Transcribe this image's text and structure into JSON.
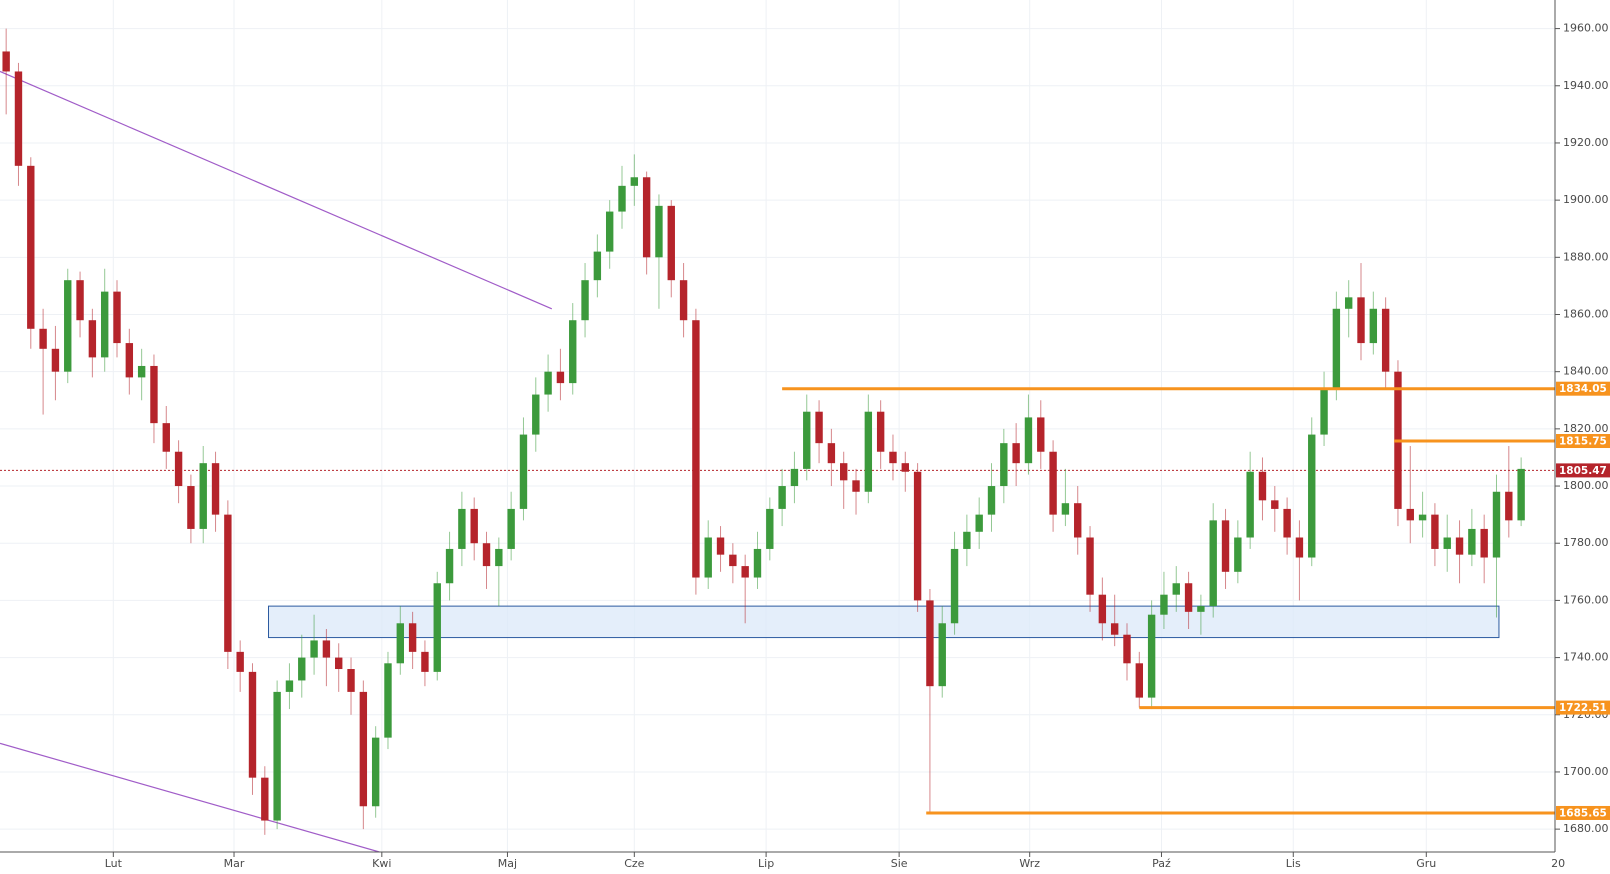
{
  "chart_data": {
    "type": "candlestick",
    "up_color": "#3c9a3c",
    "down_color": "#b5242b",
    "grid": true,
    "xlim": [
      -0.5,
      125.75
    ],
    "ylim": [
      1672,
      1970
    ],
    "xticks": [
      {
        "value": 8.7,
        "label": "Lut"
      },
      {
        "value": 18.5,
        "label": "Mar"
      },
      {
        "value": 30.5,
        "label": "Kwi"
      },
      {
        "value": 40.7,
        "label": "Maj"
      },
      {
        "value": 51,
        "label": "Cze"
      },
      {
        "value": 61.7,
        "label": "Lip"
      },
      {
        "value": 72.5,
        "label": "Sie"
      },
      {
        "value": 83.1,
        "label": "Wrz"
      },
      {
        "value": 93.8,
        "label": "Paź"
      },
      {
        "value": 104.5,
        "label": "Lis"
      },
      {
        "value": 115.3,
        "label": "Gru"
      },
      {
        "value": 126,
        "label": "20"
      }
    ],
    "yticks": [
      {
        "value": 1680,
        "label": "1680.00"
      },
      {
        "value": 1700,
        "label": "1700.00"
      },
      {
        "value": 1720,
        "label": "1720.00"
      },
      {
        "value": 1740,
        "label": "1740.00"
      },
      {
        "value": 1760,
        "label": "1760.00"
      },
      {
        "value": 1780,
        "label": "1780.00"
      },
      {
        "value": 1800,
        "label": "1800.00"
      },
      {
        "value": 1820,
        "label": "1820.00"
      },
      {
        "value": 1840,
        "label": "1840.00"
      },
      {
        "value": 1860,
        "label": "1860.00"
      },
      {
        "value": 1880,
        "label": "1880.00"
      },
      {
        "value": 1900,
        "label": "1900.00"
      },
      {
        "value": 1920,
        "label": "1920.00"
      },
      {
        "value": 1940,
        "label": "1940.00"
      },
      {
        "value": 1960,
        "label": "1960.00"
      }
    ],
    "ohlc": [
      [
        1952,
        1960,
        1930,
        1945
      ],
      [
        1945,
        1948,
        1905,
        1912
      ],
      [
        1912,
        1915,
        1848,
        1855
      ],
      [
        1855,
        1862,
        1825,
        1848
      ],
      [
        1848,
        1856,
        1830,
        1840
      ],
      [
        1840,
        1876,
        1836,
        1872
      ],
      [
        1872,
        1875,
        1852,
        1858
      ],
      [
        1858,
        1862,
        1838,
        1845
      ],
      [
        1845,
        1876,
        1840,
        1868
      ],
      [
        1868,
        1872,
        1845,
        1850
      ],
      [
        1850,
        1855,
        1832,
        1838
      ],
      [
        1838,
        1848,
        1830,
        1842
      ],
      [
        1842,
        1846,
        1815,
        1822
      ],
      [
        1822,
        1828,
        1806,
        1812
      ],
      [
        1812,
        1816,
        1794,
        1800
      ],
      [
        1800,
        1804,
        1780,
        1785
      ],
      [
        1785,
        1814,
        1780,
        1808
      ],
      [
        1808,
        1812,
        1784,
        1790
      ],
      [
        1790,
        1795,
        1736,
        1742
      ],
      [
        1742,
        1746,
        1728,
        1735
      ],
      [
        1735,
        1738,
        1692,
        1698
      ],
      [
        1698,
        1702,
        1678,
        1683
      ],
      [
        1683,
        1732,
        1680,
        1728
      ],
      [
        1728,
        1738,
        1722,
        1732
      ],
      [
        1732,
        1748,
        1726,
        1740
      ],
      [
        1740,
        1755,
        1734,
        1746
      ],
      [
        1746,
        1750,
        1730,
        1740
      ],
      [
        1740,
        1745,
        1728,
        1736
      ],
      [
        1736,
        1740,
        1720,
        1728
      ],
      [
        1728,
        1732,
        1680,
        1688
      ],
      [
        1688,
        1716,
        1684,
        1712
      ],
      [
        1712,
        1742,
        1708,
        1738
      ],
      [
        1738,
        1758,
        1734,
        1752
      ],
      [
        1752,
        1756,
        1736,
        1742
      ],
      [
        1742,
        1746,
        1730,
        1735
      ],
      [
        1735,
        1770,
        1732,
        1766
      ],
      [
        1766,
        1784,
        1760,
        1778
      ],
      [
        1778,
        1798,
        1772,
        1792
      ],
      [
        1792,
        1796,
        1774,
        1780
      ],
      [
        1780,
        1784,
        1764,
        1772
      ],
      [
        1772,
        1782,
        1758,
        1778
      ],
      [
        1778,
        1798,
        1774,
        1792
      ],
      [
        1792,
        1824,
        1788,
        1818
      ],
      [
        1818,
        1838,
        1812,
        1832
      ],
      [
        1832,
        1846,
        1826,
        1840
      ],
      [
        1840,
        1848,
        1830,
        1836
      ],
      [
        1836,
        1864,
        1832,
        1858
      ],
      [
        1858,
        1878,
        1852,
        1872
      ],
      [
        1872,
        1888,
        1866,
        1882
      ],
      [
        1882,
        1900,
        1876,
        1896
      ],
      [
        1896,
        1912,
        1890,
        1905
      ],
      [
        1905,
        1916,
        1898,
        1908
      ],
      [
        1908,
        1910,
        1874,
        1880
      ],
      [
        1880,
        1902,
        1862,
        1898
      ],
      [
        1898,
        1900,
        1866,
        1872
      ],
      [
        1872,
        1878,
        1852,
        1858
      ],
      [
        1858,
        1862,
        1762,
        1768
      ],
      [
        1768,
        1788,
        1764,
        1782
      ],
      [
        1782,
        1786,
        1770,
        1776
      ],
      [
        1776,
        1780,
        1766,
        1772
      ],
      [
        1772,
        1776,
        1752,
        1768
      ],
      [
        1768,
        1784,
        1764,
        1778
      ],
      [
        1778,
        1796,
        1774,
        1792
      ],
      [
        1792,
        1806,
        1786,
        1800
      ],
      [
        1800,
        1812,
        1794,
        1806
      ],
      [
        1806,
        1832,
        1802,
        1826
      ],
      [
        1826,
        1830,
        1808,
        1815
      ],
      [
        1815,
        1820,
        1800,
        1808
      ],
      [
        1808,
        1812,
        1792,
        1802
      ],
      [
        1802,
        1806,
        1790,
        1798
      ],
      [
        1798,
        1832,
        1794,
        1826
      ],
      [
        1826,
        1830,
        1806,
        1812
      ],
      [
        1812,
        1818,
        1802,
        1808
      ],
      [
        1808,
        1812,
        1798,
        1805
      ],
      [
        1805,
        1808,
        1756,
        1760
      ],
      [
        1760,
        1764,
        1685.65,
        1730
      ],
      [
        1730,
        1758,
        1726,
        1752
      ],
      [
        1752,
        1784,
        1748,
        1778
      ],
      [
        1778,
        1790,
        1772,
        1784
      ],
      [
        1784,
        1796,
        1778,
        1790
      ],
      [
        1790,
        1808,
        1784,
        1800
      ],
      [
        1800,
        1820,
        1794,
        1815
      ],
      [
        1815,
        1822,
        1800,
        1808
      ],
      [
        1808,
        1832,
        1804,
        1824
      ],
      [
        1824,
        1830,
        1806,
        1812
      ],
      [
        1812,
        1816,
        1784,
        1790
      ],
      [
        1790,
        1806,
        1786,
        1794
      ],
      [
        1794,
        1800,
        1776,
        1782
      ],
      [
        1782,
        1786,
        1756,
        1762
      ],
      [
        1762,
        1768,
        1746,
        1752
      ],
      [
        1752,
        1762,
        1744,
        1748
      ],
      [
        1748,
        1752,
        1732,
        1738
      ],
      [
        1738,
        1742,
        1722.51,
        1726
      ],
      [
        1726,
        1760,
        1722,
        1755
      ],
      [
        1755,
        1770,
        1750,
        1762
      ],
      [
        1762,
        1772,
        1756,
        1766
      ],
      [
        1766,
        1770,
        1750,
        1756
      ],
      [
        1756,
        1762,
        1748,
        1758
      ],
      [
        1758,
        1794,
        1754,
        1788
      ],
      [
        1788,
        1792,
        1764,
        1770
      ],
      [
        1770,
        1788,
        1766,
        1782
      ],
      [
        1782,
        1812,
        1778,
        1805
      ],
      [
        1805,
        1810,
        1788,
        1795
      ],
      [
        1795,
        1800,
        1784,
        1792
      ],
      [
        1792,
        1796,
        1776,
        1782
      ],
      [
        1782,
        1788,
        1760,
        1775
      ],
      [
        1775,
        1824,
        1772,
        1818
      ],
      [
        1818,
        1840,
        1814,
        1834
      ],
      [
        1834,
        1868,
        1830,
        1862
      ],
      [
        1862,
        1872,
        1852,
        1866
      ],
      [
        1866,
        1878,
        1844,
        1850
      ],
      [
        1850,
        1868,
        1846,
        1862
      ],
      [
        1862,
        1866,
        1834,
        1840
      ],
      [
        1840,
        1844,
        1786,
        1792
      ],
      [
        1792,
        1814,
        1780,
        1788
      ],
      [
        1788,
        1798,
        1782,
        1790
      ],
      [
        1790,
        1794,
        1772,
        1778
      ],
      [
        1778,
        1790,
        1770,
        1782
      ],
      [
        1782,
        1788,
        1766,
        1776
      ],
      [
        1776,
        1792,
        1772,
        1785
      ],
      [
        1785,
        1790,
        1766,
        1775
      ],
      [
        1775,
        1804,
        1754,
        1798
      ],
      [
        1798,
        1814,
        1782,
        1788
      ],
      [
        1788,
        1810,
        1786,
        1806
      ]
    ],
    "zone": {
      "x": [
        21.3,
        121.2
      ],
      "y": [
        1747,
        1758
      ],
      "color": "#dbe8f8",
      "border": "#2c5aa0"
    },
    "trend_lines": [
      {
        "x": [
          -0.5,
          44.3
        ],
        "y": [
          1945,
          1862
        ],
        "color": "#a05cc8"
      },
      {
        "x": [
          -0.5,
          30.3
        ],
        "y": [
          1710,
          1672
        ],
        "color": "#a05cc8"
      }
    ],
    "levels": [
      {
        "value": 1834.05,
        "start": 63,
        "color": "#f7931e"
      },
      {
        "value": 1815.75,
        "start": 112.7,
        "color": "#f7931e"
      },
      {
        "value": 1722.51,
        "start": 92,
        "color": "#f7931e"
      },
      {
        "value": 1685.65,
        "start": 74.7,
        "color": "#f7931e"
      }
    ],
    "last_price": {
      "value": 1805.47,
      "color": "#b5242b"
    }
  }
}
